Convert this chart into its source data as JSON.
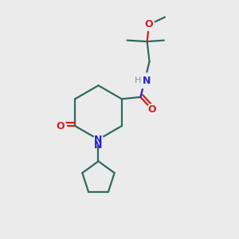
{
  "background_color": "#ebebeb",
  "bond_color": "#2d6b5e",
  "N_color": "#2222cc",
  "O_color": "#cc2222",
  "H_color": "#7a9a9a",
  "line_width": 1.6,
  "figsize": [
    3.0,
    3.0
  ],
  "dpi": 100,
  "xlim": [
    0,
    10
  ],
  "ylim": [
    0,
    10
  ]
}
